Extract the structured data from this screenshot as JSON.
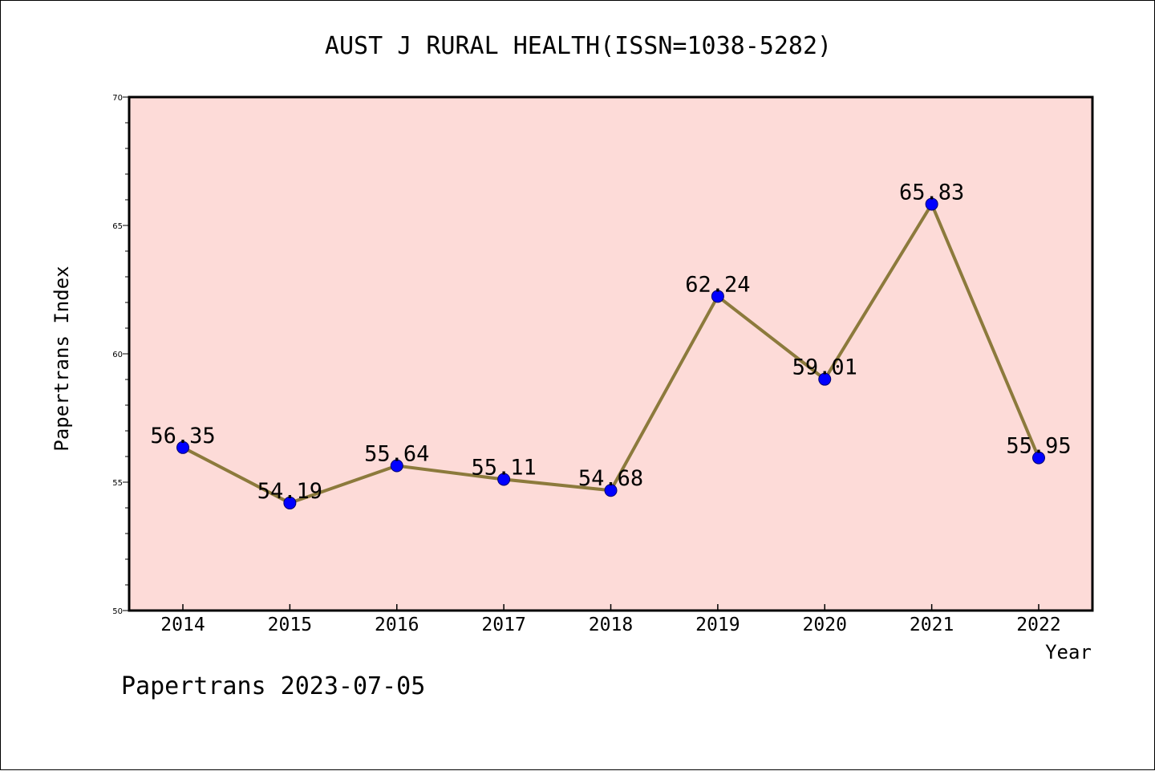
{
  "chart_data": {
    "type": "line",
    "title": "AUST J RURAL HEALTH(ISSN=1038-5282)",
    "xlabel": "Year",
    "ylabel": "Papertrans Index",
    "categories": [
      "2014",
      "2015",
      "2016",
      "2017",
      "2018",
      "2019",
      "2020",
      "2021",
      "2022"
    ],
    "series": [
      {
        "values": [
          56.35,
          54.19,
          55.64,
          55.11,
          54.68,
          62.24,
          59.01,
          65.83,
          55.95
        ],
        "labels": [
          "56.35",
          "54.19",
          "55.64",
          "55.11",
          "54.68",
          "62.24",
          "59.01",
          "65.83",
          "55.95"
        ]
      }
    ],
    "ylim": [
      50,
      70
    ],
    "yticks": [
      "50",
      "55",
      "60",
      "65",
      "70"
    ],
    "ytick_values": [
      50,
      55,
      60,
      65,
      70
    ],
    "grid": false,
    "colors": {
      "plot_background": "#fddbd8",
      "line": "#8c7a3c",
      "marker": "#0000ff"
    }
  },
  "footer": {
    "text": "Papertrans 2023-07-05"
  }
}
